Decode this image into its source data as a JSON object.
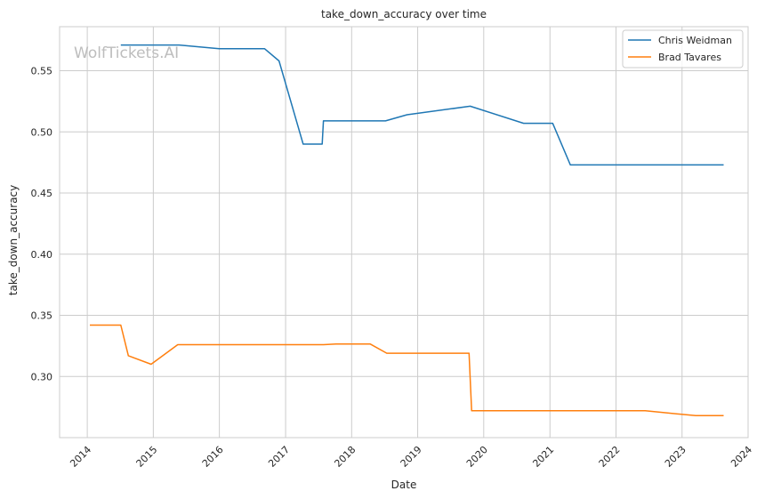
{
  "watermark": "WolfTickets.AI",
  "chart_data": {
    "type": "line",
    "title": "take_down_accuracy over time",
    "xlabel": "Date",
    "ylabel": "take_down_accuracy",
    "xlim": [
      "2013-08-01",
      "2024-01-01"
    ],
    "ylim": [
      0.25,
      0.586
    ],
    "x_ticks": [
      "2014-01-01",
      "2015-01-01",
      "2016-01-01",
      "2017-01-01",
      "2018-01-01",
      "2019-01-01",
      "2020-01-01",
      "2021-01-01",
      "2022-01-01",
      "2023-01-01",
      "2024-01-01"
    ],
    "x_tick_labels": [
      "2014",
      "2015",
      "2016",
      "2017",
      "2018",
      "2019",
      "2020",
      "2021",
      "2022",
      "2023",
      "2024"
    ],
    "y_ticks": [
      0.3,
      0.35,
      0.4,
      0.45,
      0.5,
      0.55
    ],
    "y_tick_labels": [
      "0.30",
      "0.35",
      "0.40",
      "0.45",
      "0.50",
      "0.55"
    ],
    "grid": true,
    "legend_position": "top-right",
    "series": [
      {
        "name": "Chris Weidman",
        "color": "#1f77b4",
        "points": [
          [
            "2014-07-05",
            0.571
          ],
          [
            "2015-05-23",
            0.571
          ],
          [
            "2015-12-31",
            0.568
          ],
          [
            "2016-09-07",
            0.568
          ],
          [
            "2016-11-26",
            0.558
          ],
          [
            "2017-04-08",
            0.49
          ],
          [
            "2017-07-22",
            0.49
          ],
          [
            "2017-07-29",
            0.509
          ],
          [
            "2018-07-07",
            0.509
          ],
          [
            "2018-11-03",
            0.514
          ],
          [
            "2019-10-18",
            0.521
          ],
          [
            "2020-08-08",
            0.507
          ],
          [
            "2021-01-16",
            0.507
          ],
          [
            "2021-04-24",
            0.473
          ],
          [
            "2023-08-19",
            0.473
          ]
        ]
      },
      {
        "name": "Brad Tavares",
        "color": "#ff7f0e",
        "points": [
          [
            "2014-01-15",
            0.342
          ],
          [
            "2014-07-05",
            0.342
          ],
          [
            "2014-08-16",
            0.317
          ],
          [
            "2014-12-20",
            0.31
          ],
          [
            "2015-05-16",
            0.326
          ],
          [
            "2017-07-29",
            0.326
          ],
          [
            "2017-10-07",
            0.3265
          ],
          [
            "2018-04-14",
            0.3265
          ],
          [
            "2018-07-14",
            0.319
          ],
          [
            "2019-10-12",
            0.319
          ],
          [
            "2019-10-26",
            0.272
          ],
          [
            "2022-06-11",
            0.272
          ],
          [
            "2023-03-18",
            0.268
          ],
          [
            "2023-08-19",
            0.268
          ]
        ]
      }
    ]
  }
}
